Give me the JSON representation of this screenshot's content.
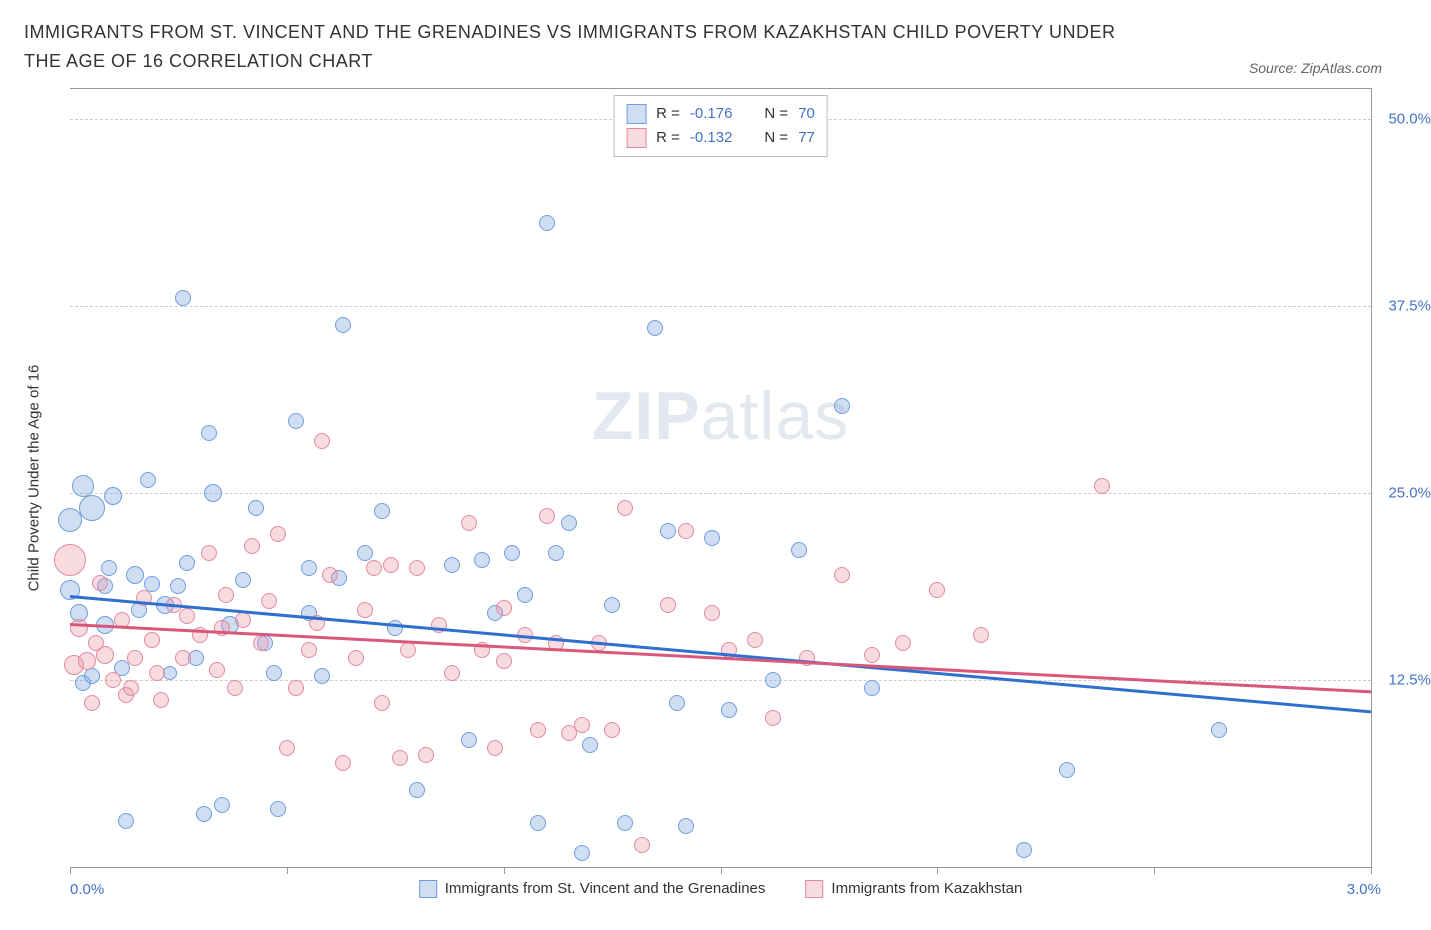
{
  "title": "IMMIGRANTS FROM ST. VINCENT AND THE GRENADINES VS IMMIGRANTS FROM KAZAKHSTAN CHILD POVERTY UNDER THE AGE OF 16 CORRELATION CHART",
  "source_label": "Source: ",
  "source_name": "ZipAtlas.com",
  "watermark_bold": "ZIP",
  "watermark_rest": "atlas",
  "y_axis_title": "Child Poverty Under the Age of 16",
  "chart": {
    "type": "scatter",
    "background_color": "#ffffff",
    "grid_color": "#cccccc",
    "axis_color": "#999999",
    "xlim": [
      0.0,
      3.0
    ],
    "ylim": [
      0.0,
      52.0
    ],
    "x_ticks": [
      0.0,
      0.5,
      1.0,
      1.5,
      2.0,
      2.5,
      3.0
    ],
    "x_tick_labels": {
      "min": "0.0%",
      "max": "3.0%"
    },
    "y_ticks": [
      {
        "v": 12.5,
        "label": "12.5%"
      },
      {
        "v": 25.0,
        "label": "25.0%"
      },
      {
        "v": 37.5,
        "label": "37.5%"
      },
      {
        "v": 50.0,
        "label": "50.0%"
      }
    ],
    "label_color": "#4472c4",
    "label_fontsize": 15
  },
  "series": [
    {
      "key": "svg",
      "name": "Immigrants from St. Vincent and the Grenadines",
      "fill": "rgba(120,160,220,0.35)",
      "stroke": "#6f9edb",
      "line_color": "#2e6fd0",
      "R_label": "R = ",
      "R_value": "-0.176",
      "N_label": "N = ",
      "N_value": "70",
      "trend": {
        "y_at_xmin": 18.2,
        "y_at_xmax": 10.5
      },
      "points": [
        {
          "x": 0.0,
          "y": 18.5,
          "r": 10
        },
        {
          "x": 0.0,
          "y": 23.2,
          "r": 12
        },
        {
          "x": 0.02,
          "y": 17.0,
          "r": 9
        },
        {
          "x": 0.03,
          "y": 12.3,
          "r": 8
        },
        {
          "x": 0.03,
          "y": 25.5,
          "r": 11
        },
        {
          "x": 0.05,
          "y": 12.8,
          "r": 8
        },
        {
          "x": 0.08,
          "y": 16.2,
          "r": 9
        },
        {
          "x": 0.08,
          "y": 18.8,
          "r": 8
        },
        {
          "x": 0.1,
          "y": 24.8,
          "r": 9
        },
        {
          "x": 0.13,
          "y": 3.1,
          "r": 8
        },
        {
          "x": 0.15,
          "y": 19.5,
          "r": 9
        },
        {
          "x": 0.18,
          "y": 25.9,
          "r": 8
        },
        {
          "x": 0.19,
          "y": 18.9,
          "r": 8
        },
        {
          "x": 0.22,
          "y": 17.5,
          "r": 9
        },
        {
          "x": 0.23,
          "y": 13.0,
          "r": 7
        },
        {
          "x": 0.25,
          "y": 18.8,
          "r": 8
        },
        {
          "x": 0.26,
          "y": 38.0,
          "r": 8
        },
        {
          "x": 0.29,
          "y": 14.0,
          "r": 8
        },
        {
          "x": 0.31,
          "y": 3.6,
          "r": 8
        },
        {
          "x": 0.32,
          "y": 29.0,
          "r": 8
        },
        {
          "x": 0.33,
          "y": 25.0,
          "r": 9
        },
        {
          "x": 0.35,
          "y": 4.2,
          "r": 8
        },
        {
          "x": 0.37,
          "y": 16.2,
          "r": 9
        },
        {
          "x": 0.4,
          "y": 19.2,
          "r": 8
        },
        {
          "x": 0.43,
          "y": 24.0,
          "r": 8
        },
        {
          "x": 0.45,
          "y": 15.0,
          "r": 8
        },
        {
          "x": 0.48,
          "y": 3.9,
          "r": 8
        },
        {
          "x": 0.52,
          "y": 29.8,
          "r": 8
        },
        {
          "x": 0.55,
          "y": 20.0,
          "r": 8
        },
        {
          "x": 0.58,
          "y": 12.8,
          "r": 8
        },
        {
          "x": 0.63,
          "y": 36.2,
          "r": 8
        },
        {
          "x": 0.68,
          "y": 21.0,
          "r": 8
        },
        {
          "x": 0.72,
          "y": 23.8,
          "r": 8
        },
        {
          "x": 0.75,
          "y": 16.0,
          "r": 8
        },
        {
          "x": 0.8,
          "y": 5.2,
          "r": 8
        },
        {
          "x": 0.88,
          "y": 20.2,
          "r": 8
        },
        {
          "x": 0.92,
          "y": 8.5,
          "r": 8
        },
        {
          "x": 0.95,
          "y": 20.5,
          "r": 8
        },
        {
          "x": 0.98,
          "y": 17.0,
          "r": 8
        },
        {
          "x": 1.02,
          "y": 21.0,
          "r": 8
        },
        {
          "x": 1.05,
          "y": 18.2,
          "r": 8
        },
        {
          "x": 1.08,
          "y": 3.0,
          "r": 8
        },
        {
          "x": 1.1,
          "y": 43.0,
          "r": 8
        },
        {
          "x": 1.12,
          "y": 21.0,
          "r": 8
        },
        {
          "x": 1.18,
          "y": 1.0,
          "r": 8
        },
        {
          "x": 1.2,
          "y": 8.2,
          "r": 8
        },
        {
          "x": 1.25,
          "y": 17.5,
          "r": 8
        },
        {
          "x": 1.28,
          "y": 3.0,
          "r": 8
        },
        {
          "x": 1.35,
          "y": 36.0,
          "r": 8
        },
        {
          "x": 1.38,
          "y": 22.5,
          "r": 8
        },
        {
          "x": 1.4,
          "y": 11.0,
          "r": 8
        },
        {
          "x": 1.42,
          "y": 2.8,
          "r": 8
        },
        {
          "x": 1.48,
          "y": 22.0,
          "r": 8
        },
        {
          "x": 1.52,
          "y": 10.5,
          "r": 8
        },
        {
          "x": 1.62,
          "y": 12.5,
          "r": 8
        },
        {
          "x": 1.68,
          "y": 21.2,
          "r": 8
        },
        {
          "x": 1.78,
          "y": 30.8,
          "r": 8
        },
        {
          "x": 1.85,
          "y": 12.0,
          "r": 8
        },
        {
          "x": 2.2,
          "y": 1.2,
          "r": 8
        },
        {
          "x": 2.3,
          "y": 6.5,
          "r": 8
        },
        {
          "x": 2.65,
          "y": 9.2,
          "r": 8
        },
        {
          "x": 0.05,
          "y": 24.0,
          "r": 13
        },
        {
          "x": 0.16,
          "y": 17.2,
          "r": 8
        },
        {
          "x": 0.12,
          "y": 13.3,
          "r": 8
        },
        {
          "x": 0.27,
          "y": 20.3,
          "r": 8
        },
        {
          "x": 0.09,
          "y": 20.0,
          "r": 8
        },
        {
          "x": 0.55,
          "y": 17.0,
          "r": 8
        },
        {
          "x": 0.47,
          "y": 13.0,
          "r": 8
        },
        {
          "x": 0.62,
          "y": 19.3,
          "r": 8
        },
        {
          "x": 1.15,
          "y": 23.0,
          "r": 8
        }
      ]
    },
    {
      "key": "kaz",
      "name": "Immigrants from Kazakhstan",
      "fill": "rgba(235,150,170,0.35)",
      "stroke": "#e28aa0",
      "line_color": "#d9577a",
      "R_label": "R = ",
      "R_value": "-0.132",
      "N_label": "N = ",
      "N_value": "77",
      "trend": {
        "y_at_xmin": 16.3,
        "y_at_xmax": 11.8
      },
      "points": [
        {
          "x": 0.0,
          "y": 20.5,
          "r": 16
        },
        {
          "x": 0.01,
          "y": 13.5,
          "r": 10
        },
        {
          "x": 0.02,
          "y": 16.0,
          "r": 9
        },
        {
          "x": 0.04,
          "y": 13.8,
          "r": 9
        },
        {
          "x": 0.05,
          "y": 11.0,
          "r": 8
        },
        {
          "x": 0.07,
          "y": 19.0,
          "r": 8
        },
        {
          "x": 0.08,
          "y": 14.2,
          "r": 9
        },
        {
          "x": 0.1,
          "y": 12.5,
          "r": 8
        },
        {
          "x": 0.12,
          "y": 16.5,
          "r": 8
        },
        {
          "x": 0.13,
          "y": 11.5,
          "r": 8
        },
        {
          "x": 0.15,
          "y": 14.0,
          "r": 8
        },
        {
          "x": 0.17,
          "y": 18.0,
          "r": 8
        },
        {
          "x": 0.19,
          "y": 15.2,
          "r": 8
        },
        {
          "x": 0.2,
          "y": 13.0,
          "r": 8
        },
        {
          "x": 0.21,
          "y": 11.2,
          "r": 8
        },
        {
          "x": 0.24,
          "y": 17.5,
          "r": 8
        },
        {
          "x": 0.26,
          "y": 14.0,
          "r": 8
        },
        {
          "x": 0.27,
          "y": 16.8,
          "r": 8
        },
        {
          "x": 0.3,
          "y": 15.5,
          "r": 8
        },
        {
          "x": 0.32,
          "y": 21.0,
          "r": 8
        },
        {
          "x": 0.35,
          "y": 16.0,
          "r": 8
        },
        {
          "x": 0.36,
          "y": 18.2,
          "r": 8
        },
        {
          "x": 0.38,
          "y": 12.0,
          "r": 8
        },
        {
          "x": 0.4,
          "y": 16.5,
          "r": 8
        },
        {
          "x": 0.42,
          "y": 21.5,
          "r": 8
        },
        {
          "x": 0.44,
          "y": 15.0,
          "r": 8
        },
        {
          "x": 0.48,
          "y": 22.3,
          "r": 8
        },
        {
          "x": 0.5,
          "y": 8.0,
          "r": 8
        },
        {
          "x": 0.52,
          "y": 12.0,
          "r": 8
        },
        {
          "x": 0.55,
          "y": 14.5,
          "r": 8
        },
        {
          "x": 0.58,
          "y": 28.5,
          "r": 8
        },
        {
          "x": 0.6,
          "y": 19.5,
          "r": 8
        },
        {
          "x": 0.63,
          "y": 7.0,
          "r": 8
        },
        {
          "x": 0.66,
          "y": 14.0,
          "r": 8
        },
        {
          "x": 0.68,
          "y": 17.2,
          "r": 8
        },
        {
          "x": 0.7,
          "y": 20.0,
          "r": 8
        },
        {
          "x": 0.72,
          "y": 11.0,
          "r": 8
        },
        {
          "x": 0.74,
          "y": 20.2,
          "r": 8
        },
        {
          "x": 0.76,
          "y": 7.3,
          "r": 8
        },
        {
          "x": 0.78,
          "y": 14.5,
          "r": 8
        },
        {
          "x": 0.8,
          "y": 20.0,
          "r": 8
        },
        {
          "x": 0.82,
          "y": 7.5,
          "r": 8
        },
        {
          "x": 0.85,
          "y": 16.2,
          "r": 8
        },
        {
          "x": 0.88,
          "y": 13.0,
          "r": 8
        },
        {
          "x": 0.92,
          "y": 23.0,
          "r": 8
        },
        {
          "x": 0.95,
          "y": 14.5,
          "r": 8
        },
        {
          "x": 0.98,
          "y": 8.0,
          "r": 8
        },
        {
          "x": 1.0,
          "y": 17.3,
          "r": 8
        },
        {
          "x": 1.05,
          "y": 15.5,
          "r": 8
        },
        {
          "x": 1.08,
          "y": 9.2,
          "r": 8
        },
        {
          "x": 1.1,
          "y": 23.5,
          "r": 8
        },
        {
          "x": 1.12,
          "y": 15.0,
          "r": 8
        },
        {
          "x": 1.15,
          "y": 9.0,
          "r": 8
        },
        {
          "x": 1.18,
          "y": 9.5,
          "r": 8
        },
        {
          "x": 1.22,
          "y": 15.0,
          "r": 8
        },
        {
          "x": 1.25,
          "y": 9.2,
          "r": 8
        },
        {
          "x": 1.28,
          "y": 24.0,
          "r": 8
        },
        {
          "x": 1.32,
          "y": 1.5,
          "r": 8
        },
        {
          "x": 1.38,
          "y": 17.5,
          "r": 8
        },
        {
          "x": 1.42,
          "y": 22.5,
          "r": 8
        },
        {
          "x": 1.48,
          "y": 17.0,
          "r": 8
        },
        {
          "x": 1.52,
          "y": 14.5,
          "r": 8
        },
        {
          "x": 1.58,
          "y": 15.2,
          "r": 8
        },
        {
          "x": 1.62,
          "y": 10.0,
          "r": 8
        },
        {
          "x": 1.7,
          "y": 14.0,
          "r": 8
        },
        {
          "x": 1.78,
          "y": 19.5,
          "r": 8
        },
        {
          "x": 1.85,
          "y": 14.2,
          "r": 8
        },
        {
          "x": 1.92,
          "y": 15.0,
          "r": 8
        },
        {
          "x": 2.0,
          "y": 18.5,
          "r": 8
        },
        {
          "x": 2.1,
          "y": 15.5,
          "r": 8
        },
        {
          "x": 2.38,
          "y": 25.5,
          "r": 8
        },
        {
          "x": 0.06,
          "y": 15.0,
          "r": 8
        },
        {
          "x": 0.14,
          "y": 12.0,
          "r": 8
        },
        {
          "x": 0.46,
          "y": 17.8,
          "r": 8
        },
        {
          "x": 0.34,
          "y": 13.2,
          "r": 8
        },
        {
          "x": 0.57,
          "y": 16.3,
          "r": 8
        },
        {
          "x": 1.0,
          "y": 13.8,
          "r": 8
        }
      ]
    }
  ],
  "legend_bottom": [
    {
      "swatch_fill": "rgba(120,160,220,0.35)",
      "swatch_stroke": "#6f9edb",
      "label": "Immigrants from St. Vincent and the Grenadines"
    },
    {
      "swatch_fill": "rgba(235,150,170,0.35)",
      "swatch_stroke": "#e28aa0",
      "label": "Immigrants from Kazakhstan"
    }
  ]
}
